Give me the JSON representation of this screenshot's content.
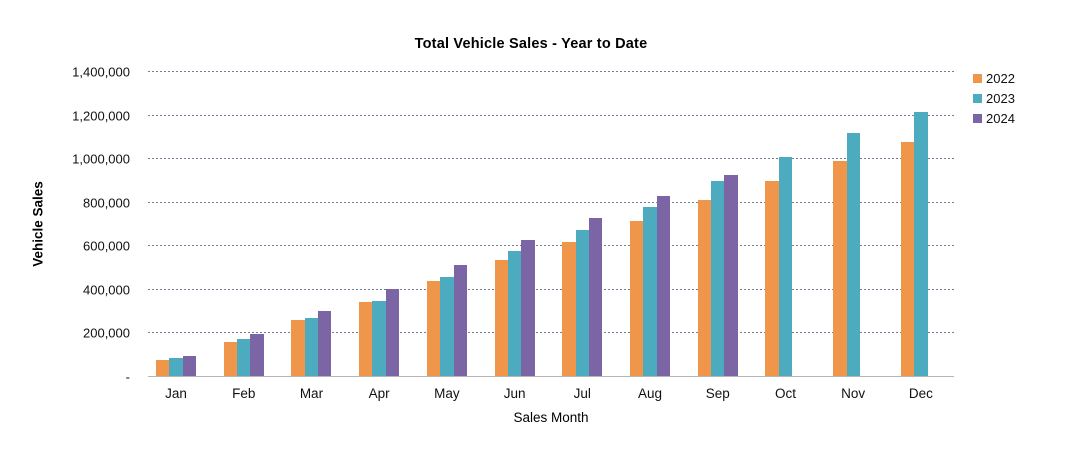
{
  "chart_data": {
    "type": "bar",
    "title": "Total Vehicle Sales - Year to Date",
    "xlabel": "Sales Month",
    "ylabel": "Vehicle Sales",
    "categories": [
      "Jan",
      "Feb",
      "Mar",
      "Apr",
      "May",
      "Jun",
      "Jul",
      "Aug",
      "Sep",
      "Oct",
      "Nov",
      "Dec"
    ],
    "series": [
      {
        "name": "2022",
        "color": "#F0964A",
        "values": [
          72000,
          157000,
          258000,
          340000,
          437000,
          535000,
          618000,
          712000,
          810000,
          900000,
          990000,
          1080000
        ]
      },
      {
        "name": "2023",
        "color": "#4DABC0",
        "values": [
          85000,
          170000,
          265000,
          347000,
          455000,
          575000,
          672000,
          780000,
          896000,
          1010000,
          1118000,
          1215000
        ]
      },
      {
        "name": "2024",
        "color": "#7B65A4",
        "values": [
          90000,
          192000,
          300000,
          400000,
          510000,
          628000,
          728000,
          827000,
          924000,
          null,
          null,
          null
        ]
      }
    ],
    "ylim": [
      0,
      1400000
    ],
    "ytick_step": 200000,
    "ytick_labels": [
      "-",
      "200,000",
      "400,000",
      "600,000",
      "800,000",
      "1,000,000",
      "1,200,000",
      "1,400,000"
    ],
    "grid": "horizontal-dashed",
    "legend_position": "right"
  }
}
